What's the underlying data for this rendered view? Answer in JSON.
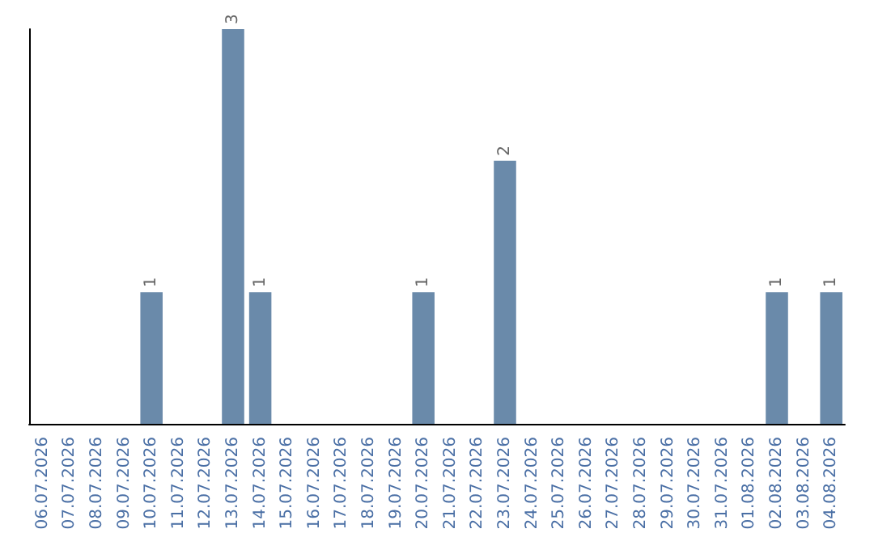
{
  "chart_data": {
    "type": "bar",
    "categories": [
      "06.07.2026",
      "07.07.2026",
      "08.07.2026",
      "09.07.2026",
      "10.07.2026",
      "11.07.2026",
      "12.07.2026",
      "13.07.2026",
      "14.07.2026",
      "15.07.2026",
      "16.07.2026",
      "17.07.2026",
      "18.07.2026",
      "19.07.2026",
      "20.07.2026",
      "21.07.2026",
      "22.07.2026",
      "23.07.2026",
      "24.07.2026",
      "25.07.2026",
      "26.07.2026",
      "27.07.2026",
      "28.07.2026",
      "29.07.2026",
      "30.07.2026",
      "31.07.2026",
      "01.08.2026",
      "02.08.2026",
      "03.08.2026",
      "04.08.2026"
    ],
    "values": [
      0,
      0,
      0,
      0,
      1,
      0,
      0,
      3,
      1,
      0,
      0,
      0,
      0,
      0,
      1,
      0,
      0,
      2,
      0,
      0,
      0,
      0,
      0,
      0,
      0,
      0,
      0,
      1,
      0,
      1
    ],
    "value_labels": [
      null,
      null,
      null,
      null,
      "1",
      null,
      null,
      "3",
      "1",
      null,
      null,
      null,
      null,
      null,
      "1",
      null,
      null,
      "2",
      null,
      null,
      null,
      null,
      null,
      null,
      null,
      null,
      null,
      "1",
      null,
      "1"
    ],
    "color": "#6a8aaa"
  }
}
